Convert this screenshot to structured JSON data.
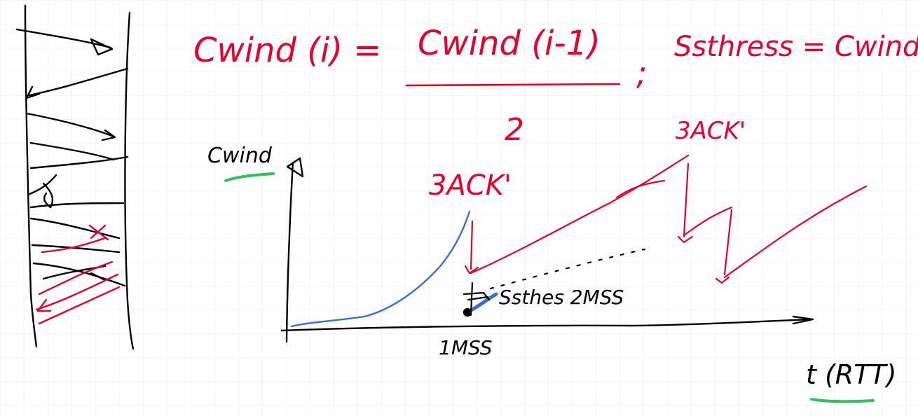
{
  "formula": {
    "lhs": "Cwind (i) =",
    "numerator": "Cwind (i-1)",
    "denominator": "2",
    "separator": ";",
    "ssthresh": "Ssthress = Cwind(i)"
  },
  "graph": {
    "y_axis_label": "Cwind",
    "x_axis_label": "t (RTT)",
    "start_label": "1MSS",
    "ssthresh_label": "Ssthes 2MSS",
    "event_label_1": "3ACK'",
    "event_label_2": "3ACK'"
  },
  "colors": {
    "background": "#ffffff",
    "grid": "#e9e9e9",
    "ink_black": "#000000",
    "ink_red": "#e8002a",
    "ink_blue": "#2f6fe0",
    "ink_green": "#29c45a"
  }
}
